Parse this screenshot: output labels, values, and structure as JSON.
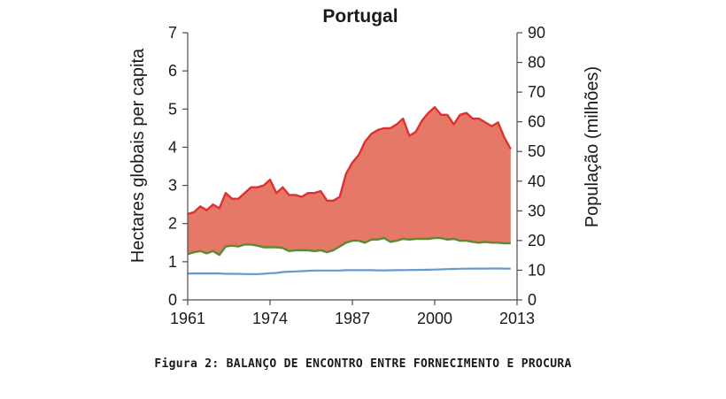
{
  "chart_data": {
    "type": "area",
    "title": "Portugal",
    "ylabel": "Hectares  globais per capita",
    "y2label": "População  (milhões)",
    "xlim": [
      1961,
      2013
    ],
    "ylim": [
      0,
      7
    ],
    "y2lim": [
      0,
      90
    ],
    "x_ticks": [
      1961,
      1974,
      1987,
      2000,
      2013
    ],
    "y_ticks": [
      0,
      1,
      2,
      3,
      4,
      5,
      6,
      7
    ],
    "y2_ticks": [
      0,
      10,
      20,
      30,
      40,
      50,
      60,
      70,
      80,
      90
    ],
    "x": [
      1961,
      1962,
      1963,
      1964,
      1965,
      1966,
      1967,
      1968,
      1969,
      1970,
      1971,
      1972,
      1973,
      1974,
      1975,
      1976,
      1977,
      1978,
      1979,
      1980,
      1981,
      1982,
      1983,
      1984,
      1985,
      1986,
      1987,
      1988,
      1989,
      1990,
      1991,
      1992,
      1993,
      1994,
      1995,
      1996,
      1997,
      1998,
      1999,
      2000,
      2001,
      2002,
      2003,
      2004,
      2005,
      2006,
      2007,
      2008,
      2009,
      2010,
      2011,
      2012
    ],
    "series": [
      {
        "axis": "left",
        "color": "#e03030",
        "values": [
          2.25,
          2.3,
          2.45,
          2.35,
          2.5,
          2.4,
          2.8,
          2.65,
          2.65,
          2.8,
          2.95,
          2.95,
          3.0,
          3.15,
          2.8,
          2.95,
          2.75,
          2.75,
          2.7,
          2.8,
          2.8,
          2.85,
          2.6,
          2.6,
          2.7,
          3.3,
          3.6,
          3.8,
          4.15,
          4.35,
          4.45,
          4.5,
          4.5,
          4.6,
          4.75,
          4.3,
          4.4,
          4.7,
          4.9,
          5.05,
          4.85,
          4.85,
          4.6,
          4.85,
          4.9,
          4.75,
          4.75,
          4.65,
          4.55,
          4.65,
          4.25,
          3.95
        ]
      },
      {
        "axis": "left",
        "color": "#5a8a32",
        "values": [
          1.2,
          1.25,
          1.28,
          1.22,
          1.28,
          1.18,
          1.4,
          1.42,
          1.4,
          1.45,
          1.45,
          1.42,
          1.38,
          1.38,
          1.38,
          1.36,
          1.28,
          1.3,
          1.3,
          1.3,
          1.28,
          1.3,
          1.25,
          1.3,
          1.4,
          1.5,
          1.55,
          1.55,
          1.5,
          1.58,
          1.58,
          1.62,
          1.52,
          1.55,
          1.6,
          1.58,
          1.6,
          1.6,
          1.6,
          1.62,
          1.62,
          1.58,
          1.6,
          1.55,
          1.55,
          1.52,
          1.5,
          1.52,
          1.5,
          1.5,
          1.48,
          1.48
        ]
      },
      {
        "axis": "right",
        "color": "#6699cc",
        "values": [
          8.9,
          8.9,
          8.9,
          8.9,
          8.9,
          8.9,
          8.8,
          8.8,
          8.8,
          8.7,
          8.7,
          8.7,
          8.8,
          9.0,
          9.1,
          9.4,
          9.5,
          9.6,
          9.7,
          9.8,
          9.9,
          9.9,
          9.9,
          9.9,
          9.9,
          10.0,
          10.0,
          10.0,
          10.0,
          10.0,
          9.95,
          9.96,
          9.98,
          10.0,
          10.03,
          10.06,
          10.09,
          10.13,
          10.17,
          10.22,
          10.29,
          10.37,
          10.44,
          10.48,
          10.52,
          10.55,
          10.56,
          10.56,
          10.57,
          10.57,
          10.56,
          10.51
        ]
      }
    ],
    "fill_between": {
      "color": "#e57866"
    }
  },
  "caption": "Figura 2: BALANÇO DE ENCONTRO ENTRE FORNECIMENTO E PROCURA"
}
